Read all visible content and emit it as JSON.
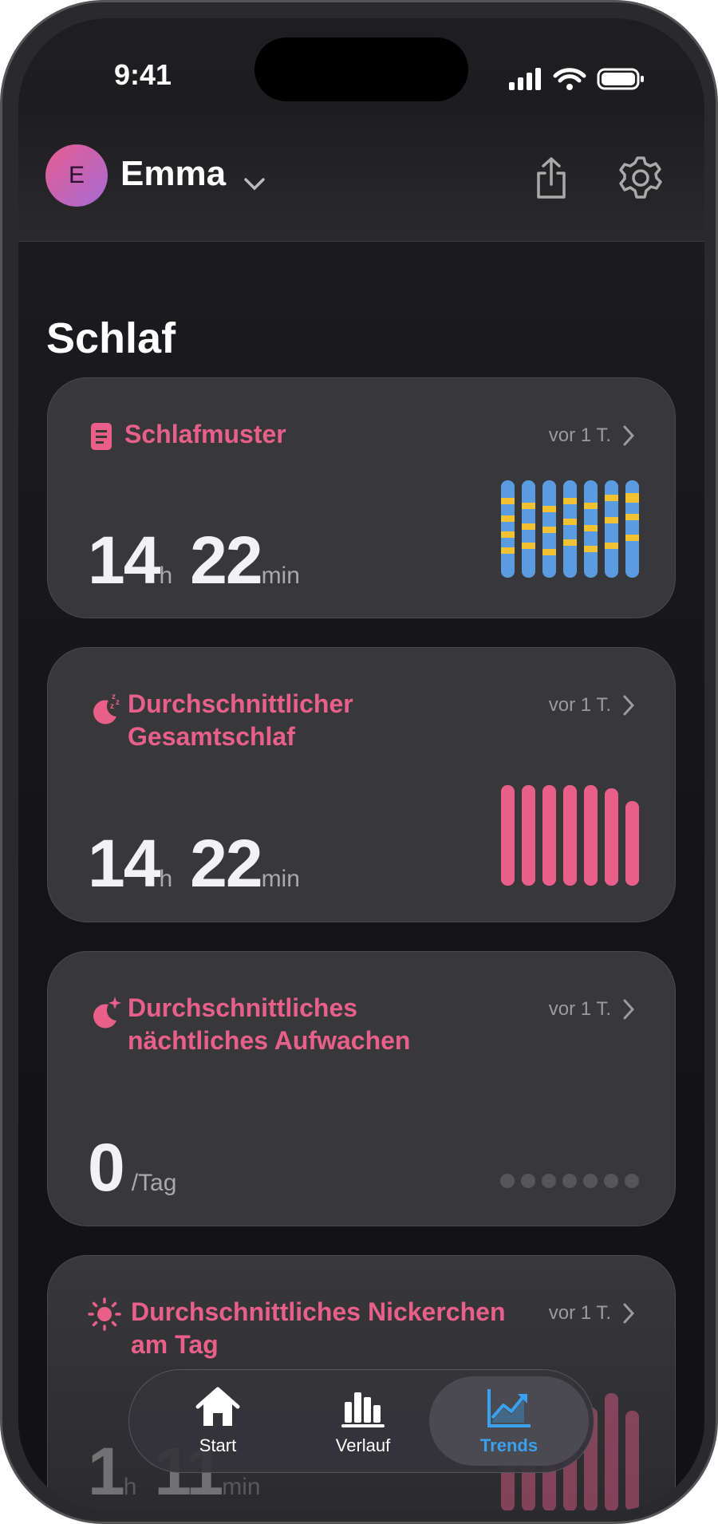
{
  "status_bar": {
    "time": "9:41"
  },
  "header": {
    "avatar": "E",
    "user": "Emma"
  },
  "section": {
    "title": "Schlaf"
  },
  "cards": [
    {
      "title": "Schlafmuster",
      "timestamp": "vor 1 T.",
      "value": [
        {
          "number": 14,
          "unit": "h"
        },
        {
          "number": 22,
          "unit": "min"
        }
      ]
    },
    {
      "title": "Durchschnittlicher Gesamtschlaf",
      "timestamp": "vor 1 T.",
      "value": [
        {
          "number": 14,
          "unit": "h"
        },
        {
          "number": 22,
          "unit": "min"
        }
      ]
    },
    {
      "title": "Durchschnittliches nächtliches Aufwachen",
      "timestamp": "vor 1 T.",
      "value": [
        {
          "number": 0,
          "unit": "/Tag"
        }
      ]
    },
    {
      "title": "Durchschnittliches Nickerchen am Tag",
      "timestamp": "vor 1 T.",
      "value": [
        {
          "number": 1,
          "unit": "h"
        },
        {
          "number": 11,
          "unit": "min"
        }
      ]
    }
  ],
  "tab_bar": {
    "items": [
      "Start",
      "Verlauf",
      "Trends"
    ]
  }
}
